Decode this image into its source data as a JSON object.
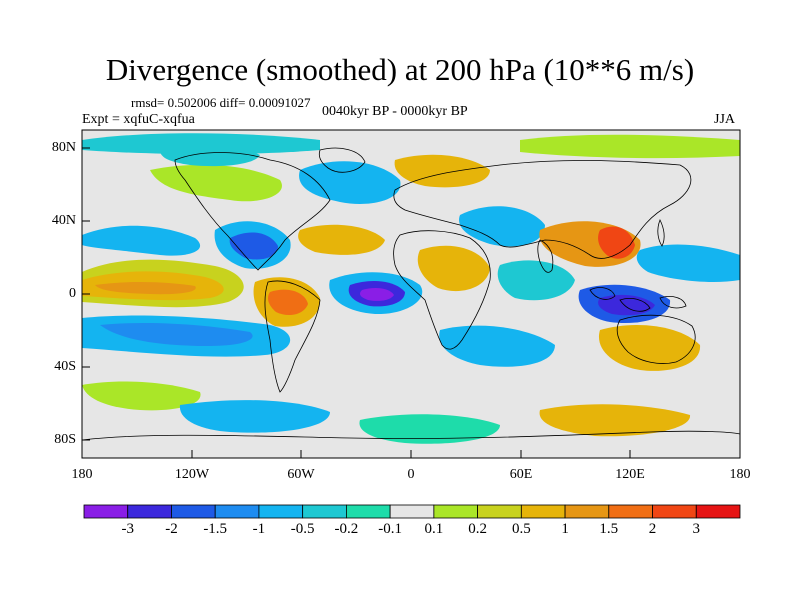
{
  "title": "Divergence (smoothed) at 200 hPa (10**6 m/s)",
  "stats": "rmsd= 0.502006 diff= 0.00091027",
  "experiment": "Expt = xqfuC-xqfua",
  "period": "0040kyr BP - 0000kyr BP",
  "season": "JJA",
  "lat_labels": [
    "80N",
    "40N",
    "0",
    "40S",
    "80S"
  ],
  "lon_labels": [
    "180",
    "120W",
    "60W",
    "0",
    "60E",
    "120E",
    "180"
  ],
  "colorbar": {
    "labels": [
      "-3",
      "-2",
      "-1.5",
      "-1",
      "-0.5",
      "-0.2",
      "-0.1",
      "0.1",
      "0.2",
      "0.5",
      "1",
      "1.5",
      "2",
      "3"
    ],
    "colors": [
      "#8a1ee6",
      "#3c28dc",
      "#1e5ae6",
      "#1e8cf0",
      "#14b4f0",
      "#1ec8d2",
      "#1edcaa",
      "#e6e6e6",
      "#aae628",
      "#c8d21e",
      "#e6b40a",
      "#e69614",
      "#f06e14",
      "#f04614",
      "#e61414"
    ]
  },
  "colors": {
    "background_field": "#e6e6e6",
    "coast": "#000000"
  }
}
